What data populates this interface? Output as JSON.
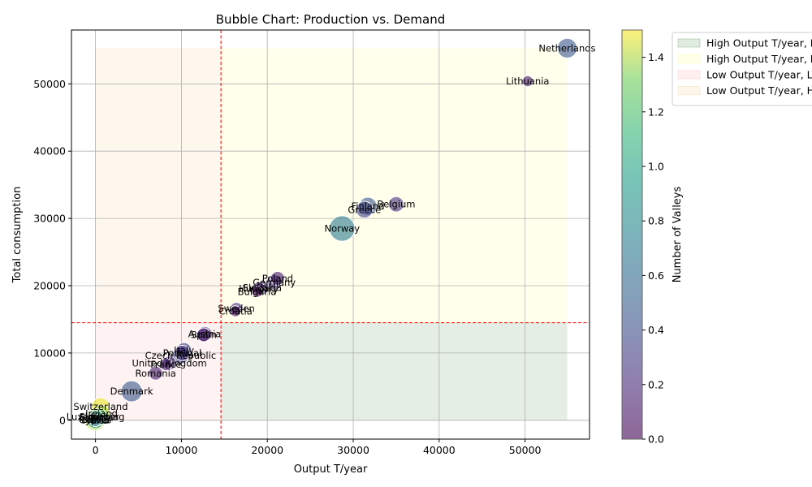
{
  "chart_data": {
    "type": "scatter",
    "title": "Bubble Chart: Production vs. Demand",
    "xlabel": "Output T/year",
    "ylabel": "Total consumption",
    "xlim": [
      -2800,
      57500
    ],
    "ylim": [
      -2800,
      58000
    ],
    "xticks": [
      0,
      10000,
      20000,
      30000,
      40000,
      50000
    ],
    "yticks": [
      0,
      10000,
      20000,
      30000,
      40000,
      50000
    ],
    "grid": true,
    "thresholds": {
      "x": 14600,
      "y": 14500
    },
    "colorbar": {
      "label": "Number of Valleys",
      "min": 0,
      "max": 1.5,
      "ticks": [
        "0.0",
        "0.2",
        "0.4",
        "0.6",
        "0.8",
        "1.0",
        "1.2",
        "1.4"
      ]
    },
    "legend": {
      "placement": "top-right outside",
      "entries": [
        {
          "label": "High Output T/year, Low Total consumption",
          "color": "#2e7d32"
        },
        {
          "label": "High Output T/year, High Total consumption",
          "color": "#ffff66"
        },
        {
          "label": "Low Output T/year, Low Total consumption",
          "color": "#ff9999"
        },
        {
          "label": "Low Output T/year, High Total consumption",
          "color": "#f4c27a"
        }
      ]
    },
    "points": [
      {
        "label": "Netherlands",
        "x": 54900,
        "y": 55300,
        "size": 0.9,
        "valleys": 0.4
      },
      {
        "label": "Lithuania",
        "x": 50300,
        "y": 50400,
        "size": 0.3,
        "valleys": 0.1
      },
      {
        "label": "Belgium",
        "x": 35000,
        "y": 32100,
        "size": 0.6,
        "valleys": 0.2
      },
      {
        "label": "Finland",
        "x": 31700,
        "y": 31800,
        "size": 0.8,
        "valleys": 0.4
      },
      {
        "label": "Greece",
        "x": 31300,
        "y": 31300,
        "size": 0.7,
        "valleys": 0.3
      },
      {
        "label": "Norway",
        "x": 28700,
        "y": 28500,
        "size": 1.3,
        "valleys": 0.6
      },
      {
        "label": "Poland",
        "x": 21200,
        "y": 21100,
        "size": 0.5,
        "valleys": 0.1
      },
      {
        "label": "Germany",
        "x": 20800,
        "y": 20500,
        "size": 0.6,
        "valleys": 0.2
      },
      {
        "label": "Slovakia",
        "x": 19400,
        "y": 19700,
        "size": 0.5,
        "valleys": 0.2
      },
      {
        "label": "Hungary",
        "x": 19000,
        "y": 19600,
        "size": 0.4,
        "valleys": 0.1
      },
      {
        "label": "Bulgaria",
        "x": 18800,
        "y": 19100,
        "size": 0.3,
        "valleys": 0.0
      },
      {
        "label": "Sweden",
        "x": 16400,
        "y": 16600,
        "size": 0.4,
        "valleys": 0.2
      },
      {
        "label": "Croatia",
        "x": 16300,
        "y": 16200,
        "size": 0.3,
        "valleys": 0.0
      },
      {
        "label": "Austria",
        "x": 12700,
        "y": 12800,
        "size": 0.6,
        "valleys": 0.2
      },
      {
        "label": "Spain",
        "x": 12600,
        "y": 12700,
        "size": 0.5,
        "valleys": 0.1
      },
      {
        "label": "Italy",
        "x": 10300,
        "y": 10400,
        "size": 0.6,
        "valleys": 0.3
      },
      {
        "label": "Portugal",
        "x": 10100,
        "y": 10000,
        "size": 0.6,
        "valleys": 0.2
      },
      {
        "label": "Czech Republic",
        "x": 9900,
        "y": 9600,
        "size": 0.7,
        "valleys": 0.3
      },
      {
        "label": "United Kingdom",
        "x": 8600,
        "y": 8500,
        "size": 0.5,
        "valleys": 0.2
      },
      {
        "label": "France",
        "x": 8200,
        "y": 8300,
        "size": 0.4,
        "valleys": 0.1
      },
      {
        "label": "Romania",
        "x": 7000,
        "y": 7000,
        "size": 0.5,
        "valleys": 0.1
      },
      {
        "label": "Denmark",
        "x": 4200,
        "y": 4300,
        "size": 1.0,
        "valleys": 0.4
      },
      {
        "label": "Switzerland",
        "x": 600,
        "y": 2000,
        "size": 0.8,
        "valleys": 1.45
      },
      {
        "label": "Ireland",
        "x": 700,
        "y": 1000,
        "size": 0.7,
        "valleys": 1.3
      },
      {
        "label": "Slovenia",
        "x": 400,
        "y": 500,
        "size": 0.7,
        "valleys": 1.0
      },
      {
        "label": "Estonia",
        "x": 100,
        "y": 400,
        "size": 0.5,
        "valleys": 0.6
      },
      {
        "label": "Luxembourg",
        "x": 0,
        "y": 500,
        "size": 0.6,
        "valleys": 1.2
      },
      {
        "label": "Latvia",
        "x": 0,
        "y": 100,
        "size": 0.8,
        "valleys": 0.8
      },
      {
        "label": "Cyprus",
        "x": -50,
        "y": 50,
        "size": 1.0,
        "valleys": 1.35
      },
      {
        "label": "Malta",
        "x": 0,
        "y": 0,
        "size": 0.4,
        "valleys": 0.5
      }
    ]
  }
}
